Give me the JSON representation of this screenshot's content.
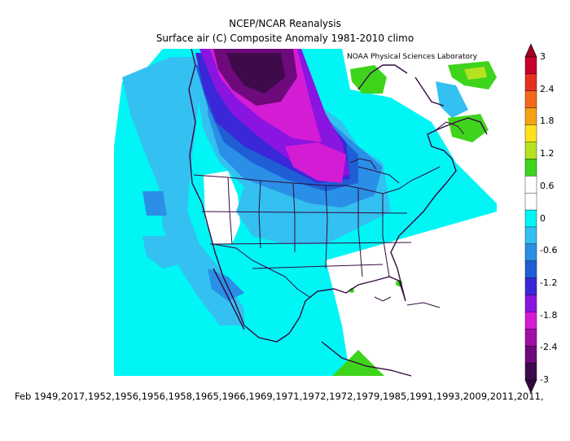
{
  "title": "NCEP/NCAR Reanalysis",
  "subtitle": "Surface air (C) Composite Anomaly 1981-2010 climo",
  "credit": "NOAA Physical Sciences Laboratory",
  "footer": "Feb 1949,2017,1952,1956,1956,1958,1965,1966,1969,1971,1972,1972,1979,1985,1991,1993,2009,2011,2011,",
  "colorbar": {
    "labels": [
      "3",
      "2.4",
      "1.8",
      "1.2",
      "0.6",
      "0",
      "-0.6",
      "-1.2",
      "-1.8",
      "-2.4",
      "-3"
    ],
    "colors": [
      "#c8002a",
      "#e6301e",
      "#f26a1a",
      "#f5a314",
      "#ffe21c",
      "#b7e221",
      "#3fd41c",
      "#ffffff",
      "#ffffff",
      "#00f5f5",
      "#34c0f0",
      "#2a8fe6",
      "#1e5fd6",
      "#3a28d8",
      "#8a14e0",
      "#d51cd5",
      "#a010a8",
      "#6e0a7c",
      "#3f0a4a"
    ],
    "tip_colors": [
      "#9e0022",
      "#330a3e"
    ]
  },
  "map": {
    "region": "North America",
    "palette": {
      "ocean_white": "#ffffff",
      "neg_0_6": "#00f5f5",
      "neg_1_2": "#34c0f0",
      "neg_1_8": "#2a8fe6",
      "neg_2_4": "#1e5fd6",
      "neg_3": "#8a14e0",
      "neg_strong": "#d51cd5",
      "neg_deep": "#6e0a7c",
      "neg_max": "#3f0a4a",
      "pos_0_6": "#3fd41c",
      "pos_1_2": "#b7e221",
      "pos_1_8": "#ffe21c"
    }
  }
}
